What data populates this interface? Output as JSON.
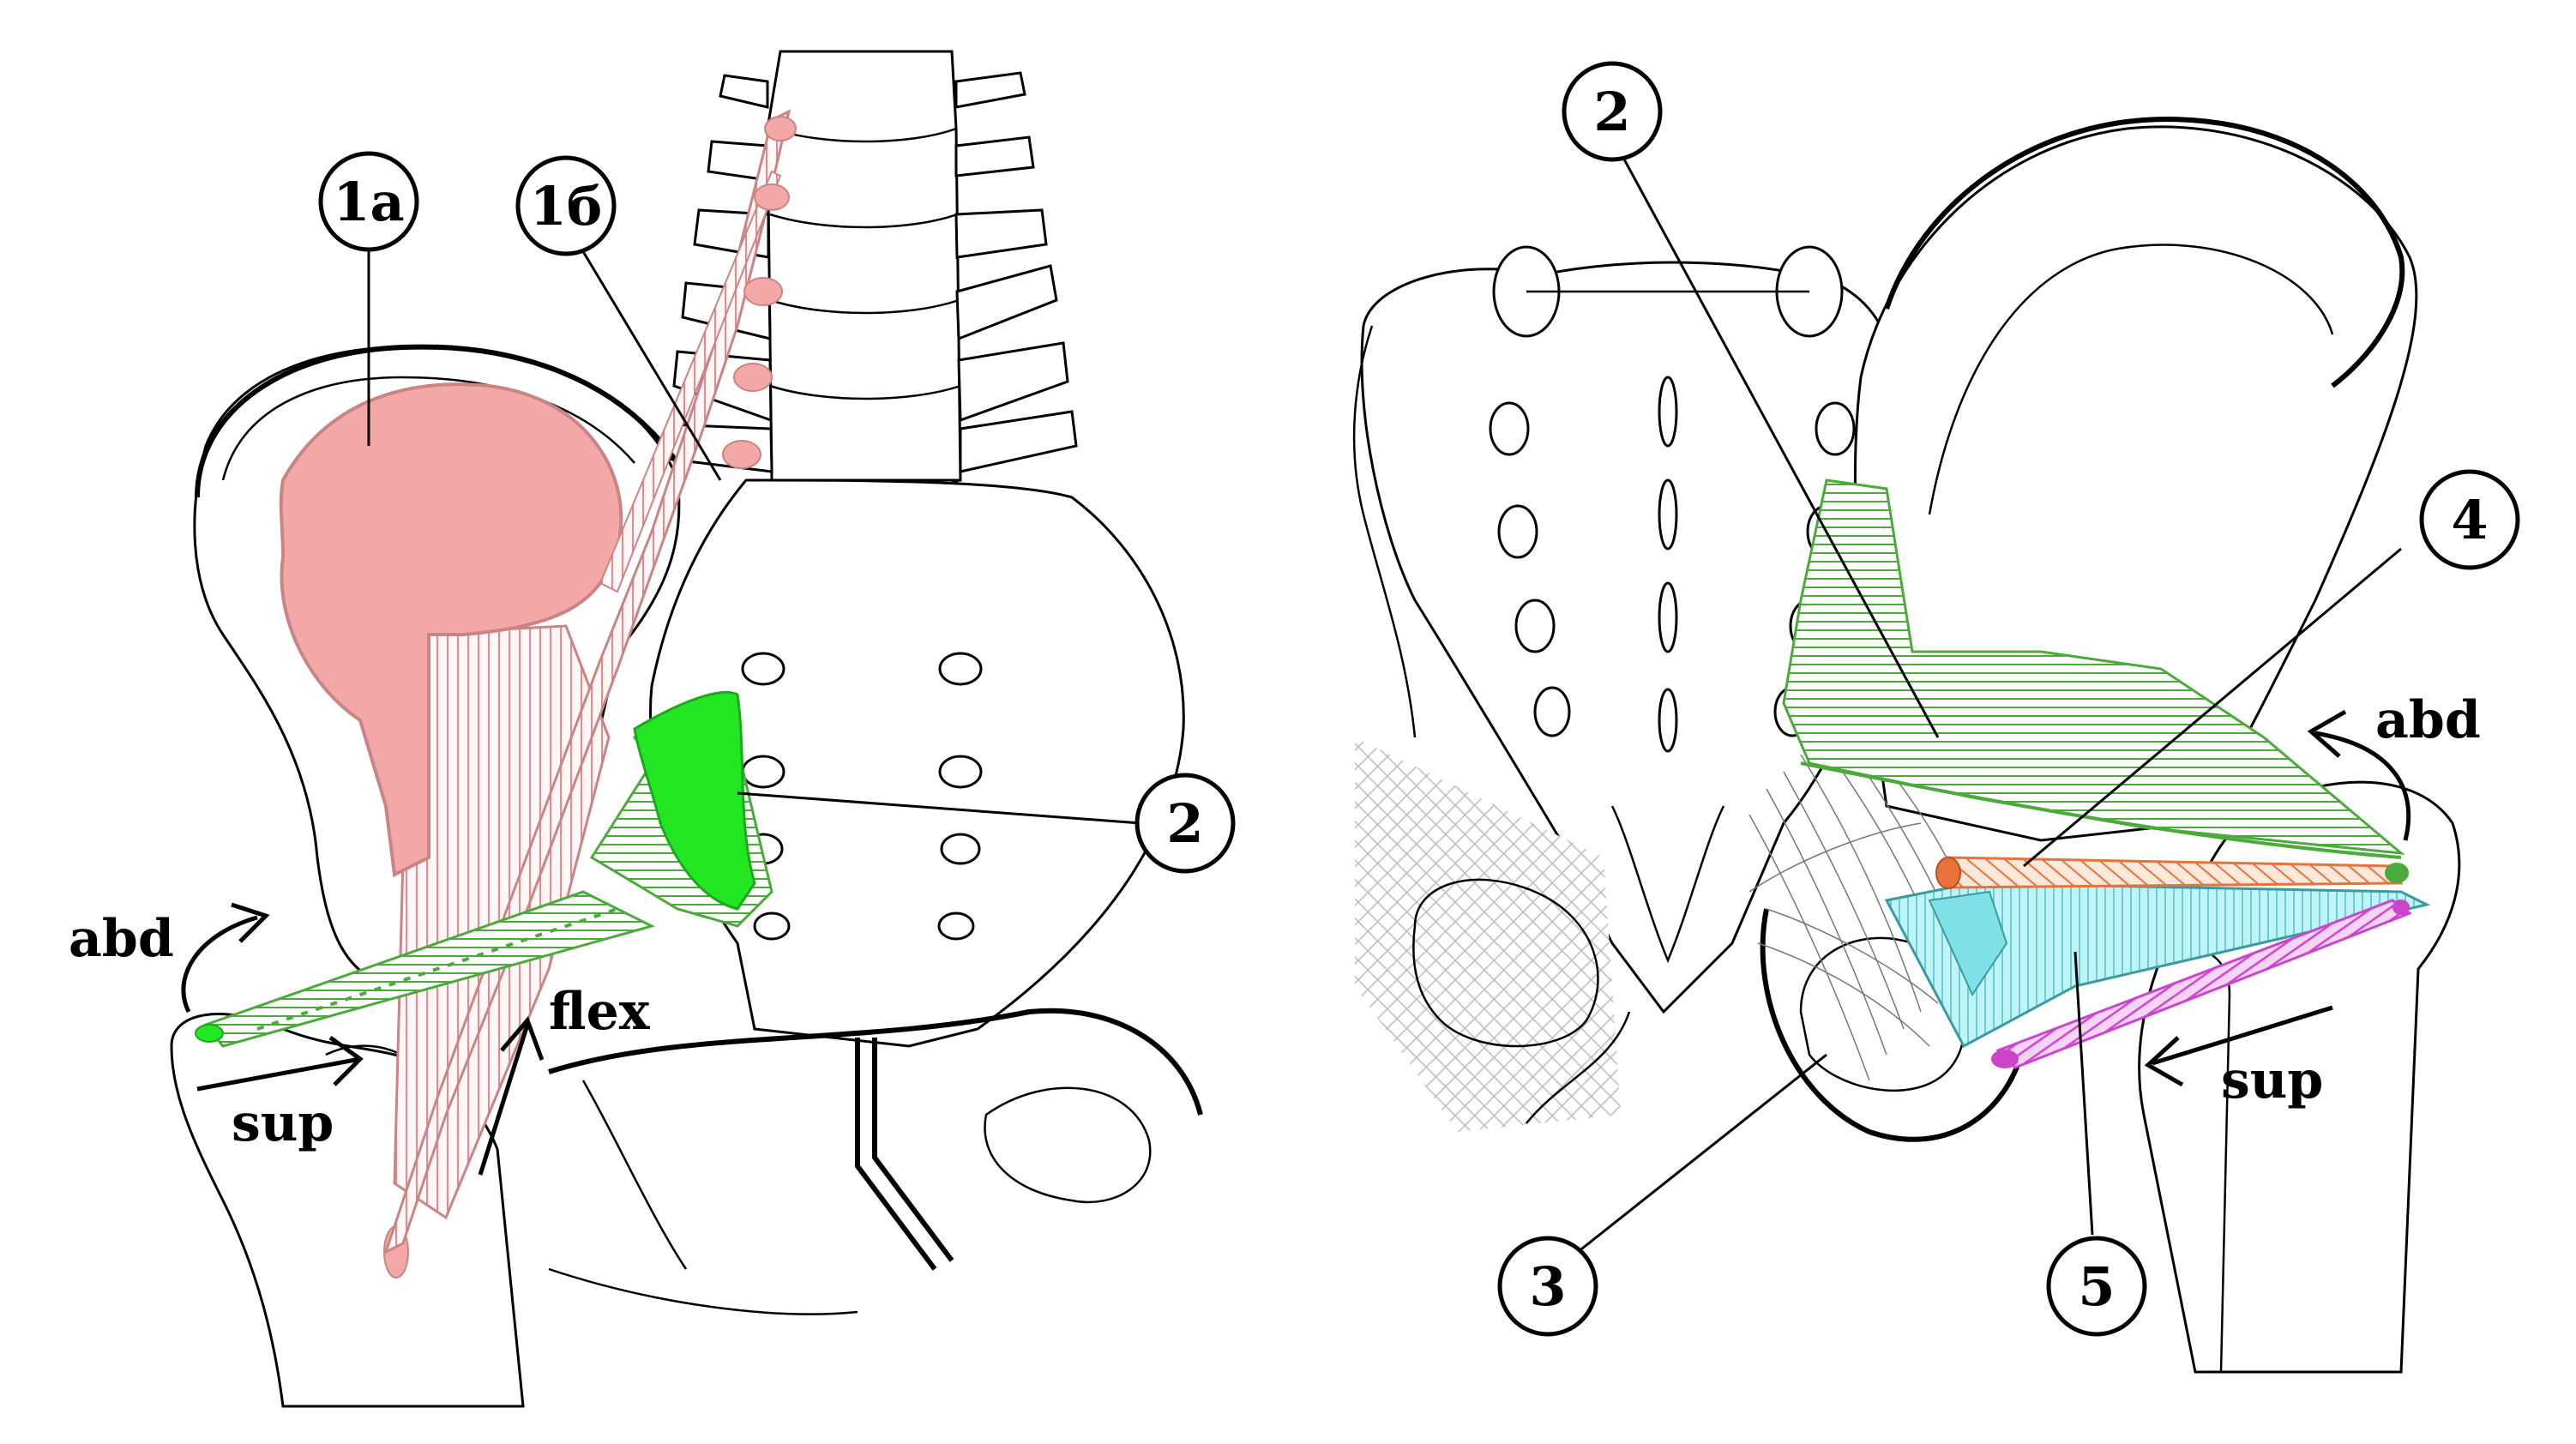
{
  "colors": {
    "gluteus_maximus": "#f4a7a7",
    "gluteus_maximus_stroke": "#c98585",
    "gluteus_medius_bright": "#22e622",
    "gluteus_medius": "#5bbb4a",
    "obturator": "#7fe0e8",
    "obturator_stroke": "#3a9aa0",
    "piriformis_orange": "#e8733a",
    "gemellus_magenta": "#cc44cc"
  },
  "left_panel": {
    "labels": {
      "l1a": "1а",
      "l1b": "1б",
      "l2": "2"
    },
    "directions": {
      "abd": "abd",
      "sup": "sup",
      "flex": "flex"
    }
  },
  "right_panel": {
    "labels": {
      "l2": "2",
      "l3": "3",
      "l4": "4",
      "l5": "5"
    },
    "directions": {
      "abd": "abd",
      "sup": "sup"
    }
  }
}
